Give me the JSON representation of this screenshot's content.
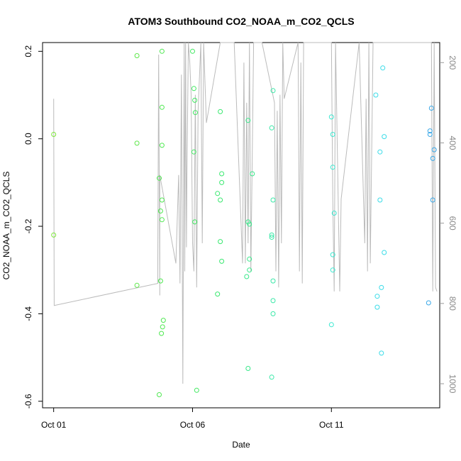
{
  "chart_data": {
    "type": "scatter",
    "title": "ATOM3 Southbound CO2_NOAA_m_CO2_QCLS",
    "xlabel": "Date",
    "ylabel": "CO2_NOAA_m_CO2_QCLS",
    "x_unit": "days since Oct 01",
    "xlim": [
      -0.4,
      13.9
    ],
    "ylim": [
      -0.6,
      0.2
    ],
    "ylim_plot": [
      -0.615,
      0.22
    ],
    "x_ticks": [
      {
        "value": 0,
        "label": "Oct 01"
      },
      {
        "value": 5,
        "label": "Oct 06"
      },
      {
        "value": 10,
        "label": "Oct 11"
      }
    ],
    "y_ticks": [
      {
        "value": -0.6,
        "label": "-0.6"
      },
      {
        "value": -0.4,
        "label": "-0.4"
      },
      {
        "value": -0.2,
        "label": "-0.2"
      },
      {
        "value": 0.0,
        "label": "0.0"
      },
      {
        "value": 0.2,
        "label": "0.2"
      }
    ],
    "y2_axis": {
      "reversed": true,
      "range": [
        1060,
        150
      ],
      "ticks": [
        {
          "value": 200,
          "label": "200"
        },
        {
          "value": 400,
          "label": "400"
        },
        {
          "value": 600,
          "label": "600"
        },
        {
          "value": 800,
          "label": "800"
        },
        {
          "value": 1000,
          "label": "1000"
        }
      ],
      "color": "#999999"
    },
    "secondary_line_color": "#bbbbbb",
    "secondary_line": [
      [
        0.0,
        290
      ],
      [
        0.02,
        805
      ],
      [
        3.75,
        750
      ],
      [
        3.75,
        690
      ],
      [
        3.78,
        180
      ],
      [
        3.8,
        480
      ],
      [
        3.82,
        780
      ],
      [
        3.82,
        480
      ],
      [
        4.4,
        700
      ],
      [
        4.5,
        480
      ],
      [
        4.55,
        750
      ],
      [
        4.6,
        230
      ],
      [
        4.65,
        1000
      ],
      [
        4.7,
        150
      ],
      [
        4.72,
        720
      ],
      [
        4.75,
        150
      ],
      [
        4.78,
        660
      ],
      [
        4.8,
        480
      ],
      [
        4.85,
        150
      ],
      [
        4.9,
        200
      ],
      [
        4.95,
        280
      ],
      [
        5.0,
        650
      ],
      [
        5.05,
        720
      ],
      [
        5.1,
        280
      ],
      [
        5.15,
        760
      ],
      [
        5.2,
        320
      ],
      [
        5.3,
        150
      ],
      [
        5.35,
        650
      ],
      [
        5.4,
        150
      ],
      [
        5.5,
        350
      ],
      [
        6.0,
        150
      ],
      [
        6.5,
        150
      ],
      [
        6.8,
        700
      ],
      [
        6.85,
        200
      ],
      [
        6.9,
        700
      ],
      [
        6.95,
        300
      ],
      [
        7.0,
        650
      ],
      [
        7.05,
        150
      ],
      [
        7.1,
        720
      ],
      [
        7.2,
        150
      ],
      [
        7.5,
        150
      ],
      [
        7.95,
        300
      ],
      [
        8.0,
        720
      ],
      [
        8.05,
        320
      ],
      [
        8.1,
        760
      ],
      [
        8.15,
        280
      ],
      [
        8.2,
        650
      ],
      [
        8.25,
        150
      ],
      [
        8.3,
        290
      ],
      [
        8.8,
        150
      ],
      [
        8.85,
        720
      ],
      [
        8.9,
        200
      ],
      [
        8.95,
        750
      ],
      [
        9.0,
        150
      ],
      [
        10.0,
        150
      ],
      [
        10.05,
        540
      ],
      [
        10.1,
        770
      ],
      [
        10.15,
        150
      ],
      [
        10.3,
        770
      ],
      [
        10.35,
        540
      ],
      [
        11.0,
        150
      ],
      [
        11.2,
        650
      ],
      [
        11.25,
        290
      ],
      [
        11.3,
        720
      ],
      [
        11.35,
        150
      ],
      [
        11.4,
        700
      ],
      [
        11.5,
        150
      ],
      [
        12.0,
        150
      ],
      [
        12.5,
        150
      ],
      [
        13.6,
        150
      ],
      [
        13.65,
        770
      ],
      [
        13.7,
        150
      ],
      [
        13.75,
        760
      ],
      [
        13.8,
        770
      ]
    ],
    "series": [
      {
        "color_gradient": "date",
        "points": [
          {
            "x": 0.0,
            "y": 0.01,
            "color": "#7ee83a"
          },
          {
            "x": 0.0,
            "y": -0.22,
            "color": "#7ee83a"
          },
          {
            "x": 3.0,
            "y": 0.19,
            "color": "#5ee84a"
          },
          {
            "x": 3.0,
            "y": -0.01,
            "color": "#5ee84a"
          },
          {
            "x": 3.0,
            "y": -0.335,
            "color": "#5ee84a"
          },
          {
            "x": 3.8,
            "y": -0.09,
            "color": "#4ee850"
          },
          {
            "x": 3.8,
            "y": -0.585,
            "color": "#4ee850"
          },
          {
            "x": 3.85,
            "y": -0.165,
            "color": "#4ee850"
          },
          {
            "x": 3.85,
            "y": -0.325,
            "color": "#4ee850"
          },
          {
            "x": 3.9,
            "y": 0.2,
            "color": "#4ee850"
          },
          {
            "x": 3.9,
            "y": 0.072,
            "color": "#4ee850"
          },
          {
            "x": 3.9,
            "y": -0.015,
            "color": "#4ee850"
          },
          {
            "x": 3.9,
            "y": -0.14,
            "color": "#4ee850"
          },
          {
            "x": 3.9,
            "y": -0.185,
            "color": "#4ee850"
          },
          {
            "x": 3.92,
            "y": -0.43,
            "color": "#4ee850"
          },
          {
            "x": 3.95,
            "y": -0.415,
            "color": "#4ee850"
          },
          {
            "x": 3.88,
            "y": -0.445,
            "color": "#4ee850"
          },
          {
            "x": 5.0,
            "y": 0.2,
            "color": "#40e860"
          },
          {
            "x": 5.05,
            "y": 0.115,
            "color": "#40e860"
          },
          {
            "x": 5.08,
            "y": 0.088,
            "color": "#40e860"
          },
          {
            "x": 5.1,
            "y": 0.06,
            "color": "#40e860"
          },
          {
            "x": 5.05,
            "y": -0.03,
            "color": "#40e860"
          },
          {
            "x": 5.08,
            "y": -0.19,
            "color": "#40e860"
          },
          {
            "x": 5.15,
            "y": -0.575,
            "color": "#40e860"
          },
          {
            "x": 5.9,
            "y": -0.125,
            "color": "#3ae870"
          },
          {
            "x": 5.9,
            "y": -0.355,
            "color": "#3ae870"
          },
          {
            "x": 6.0,
            "y": 0.062,
            "color": "#3ae870"
          },
          {
            "x": 6.05,
            "y": -0.08,
            "color": "#3ae870"
          },
          {
            "x": 6.05,
            "y": -0.1,
            "color": "#3ae870"
          },
          {
            "x": 6.0,
            "y": -0.14,
            "color": "#3ae870"
          },
          {
            "x": 6.0,
            "y": -0.235,
            "color": "#3ae870"
          },
          {
            "x": 6.05,
            "y": -0.28,
            "color": "#3ae870"
          },
          {
            "x": 7.0,
            "y": 0.042,
            "color": "#38e88a"
          },
          {
            "x": 7.0,
            "y": -0.19,
            "color": "#38e88a"
          },
          {
            "x": 7.05,
            "y": -0.195,
            "color": "#38e88a"
          },
          {
            "x": 7.05,
            "y": -0.275,
            "color": "#38e88a"
          },
          {
            "x": 7.05,
            "y": -0.3,
            "color": "#38e88a"
          },
          {
            "x": 6.95,
            "y": -0.315,
            "color": "#38e88a"
          },
          {
            "x": 7.15,
            "y": -0.08,
            "color": "#38e88a"
          },
          {
            "x": 7.0,
            "y": -0.525,
            "color": "#38e88a"
          },
          {
            "x": 7.9,
            "y": 0.11,
            "color": "#3ae8a8"
          },
          {
            "x": 7.85,
            "y": 0.025,
            "color": "#3ae8a8"
          },
          {
            "x": 7.9,
            "y": -0.14,
            "color": "#3ae8a8"
          },
          {
            "x": 7.85,
            "y": -0.22,
            "color": "#3ae8a8"
          },
          {
            "x": 7.85,
            "y": -0.225,
            "color": "#3ae8a8"
          },
          {
            "x": 7.9,
            "y": -0.325,
            "color": "#3ae8a8"
          },
          {
            "x": 7.9,
            "y": -0.37,
            "color": "#3ae8a8"
          },
          {
            "x": 7.9,
            "y": -0.4,
            "color": "#3ae8a8"
          },
          {
            "x": 7.85,
            "y": -0.545,
            "color": "#3ae8a8"
          },
          {
            "x": 10.0,
            "y": 0.05,
            "color": "#3ae8d0"
          },
          {
            "x": 10.05,
            "y": 0.01,
            "color": "#3ae8d0"
          },
          {
            "x": 10.05,
            "y": -0.065,
            "color": "#3ae8d0"
          },
          {
            "x": 10.1,
            "y": -0.17,
            "color": "#3ae8d0"
          },
          {
            "x": 10.05,
            "y": -0.265,
            "color": "#3ae8d0"
          },
          {
            "x": 10.05,
            "y": -0.3,
            "color": "#3ae8d0"
          },
          {
            "x": 10.0,
            "y": -0.425,
            "color": "#3ae8d0"
          },
          {
            "x": 11.6,
            "y": 0.1,
            "color": "#3adce8"
          },
          {
            "x": 11.85,
            "y": 0.162,
            "color": "#3adce8"
          },
          {
            "x": 11.9,
            "y": 0.005,
            "color": "#3adce8"
          },
          {
            "x": 11.75,
            "y": -0.03,
            "color": "#3adce8"
          },
          {
            "x": 11.75,
            "y": -0.14,
            "color": "#3adce8"
          },
          {
            "x": 11.9,
            "y": -0.26,
            "color": "#3adce8"
          },
          {
            "x": 11.8,
            "y": -0.34,
            "color": "#3adce8"
          },
          {
            "x": 11.65,
            "y": -0.36,
            "color": "#3adce8"
          },
          {
            "x": 11.65,
            "y": -0.385,
            "color": "#3adce8"
          },
          {
            "x": 11.8,
            "y": -0.49,
            "color": "#3adce8"
          },
          {
            "x": 13.6,
            "y": 0.07,
            "color": "#3aa8e8"
          },
          {
            "x": 13.55,
            "y": 0.018,
            "color": "#3aa8e8"
          },
          {
            "x": 13.55,
            "y": 0.01,
            "color": "#3aa8e8"
          },
          {
            "x": 13.7,
            "y": -0.025,
            "color": "#3aa8e8"
          },
          {
            "x": 13.65,
            "y": -0.045,
            "color": "#3aa8e8"
          },
          {
            "x": 13.65,
            "y": -0.14,
            "color": "#3aa8e8"
          },
          {
            "x": 13.5,
            "y": -0.375,
            "color": "#3aa8e8"
          }
        ]
      }
    ],
    "grid": false,
    "legend": "none"
  }
}
